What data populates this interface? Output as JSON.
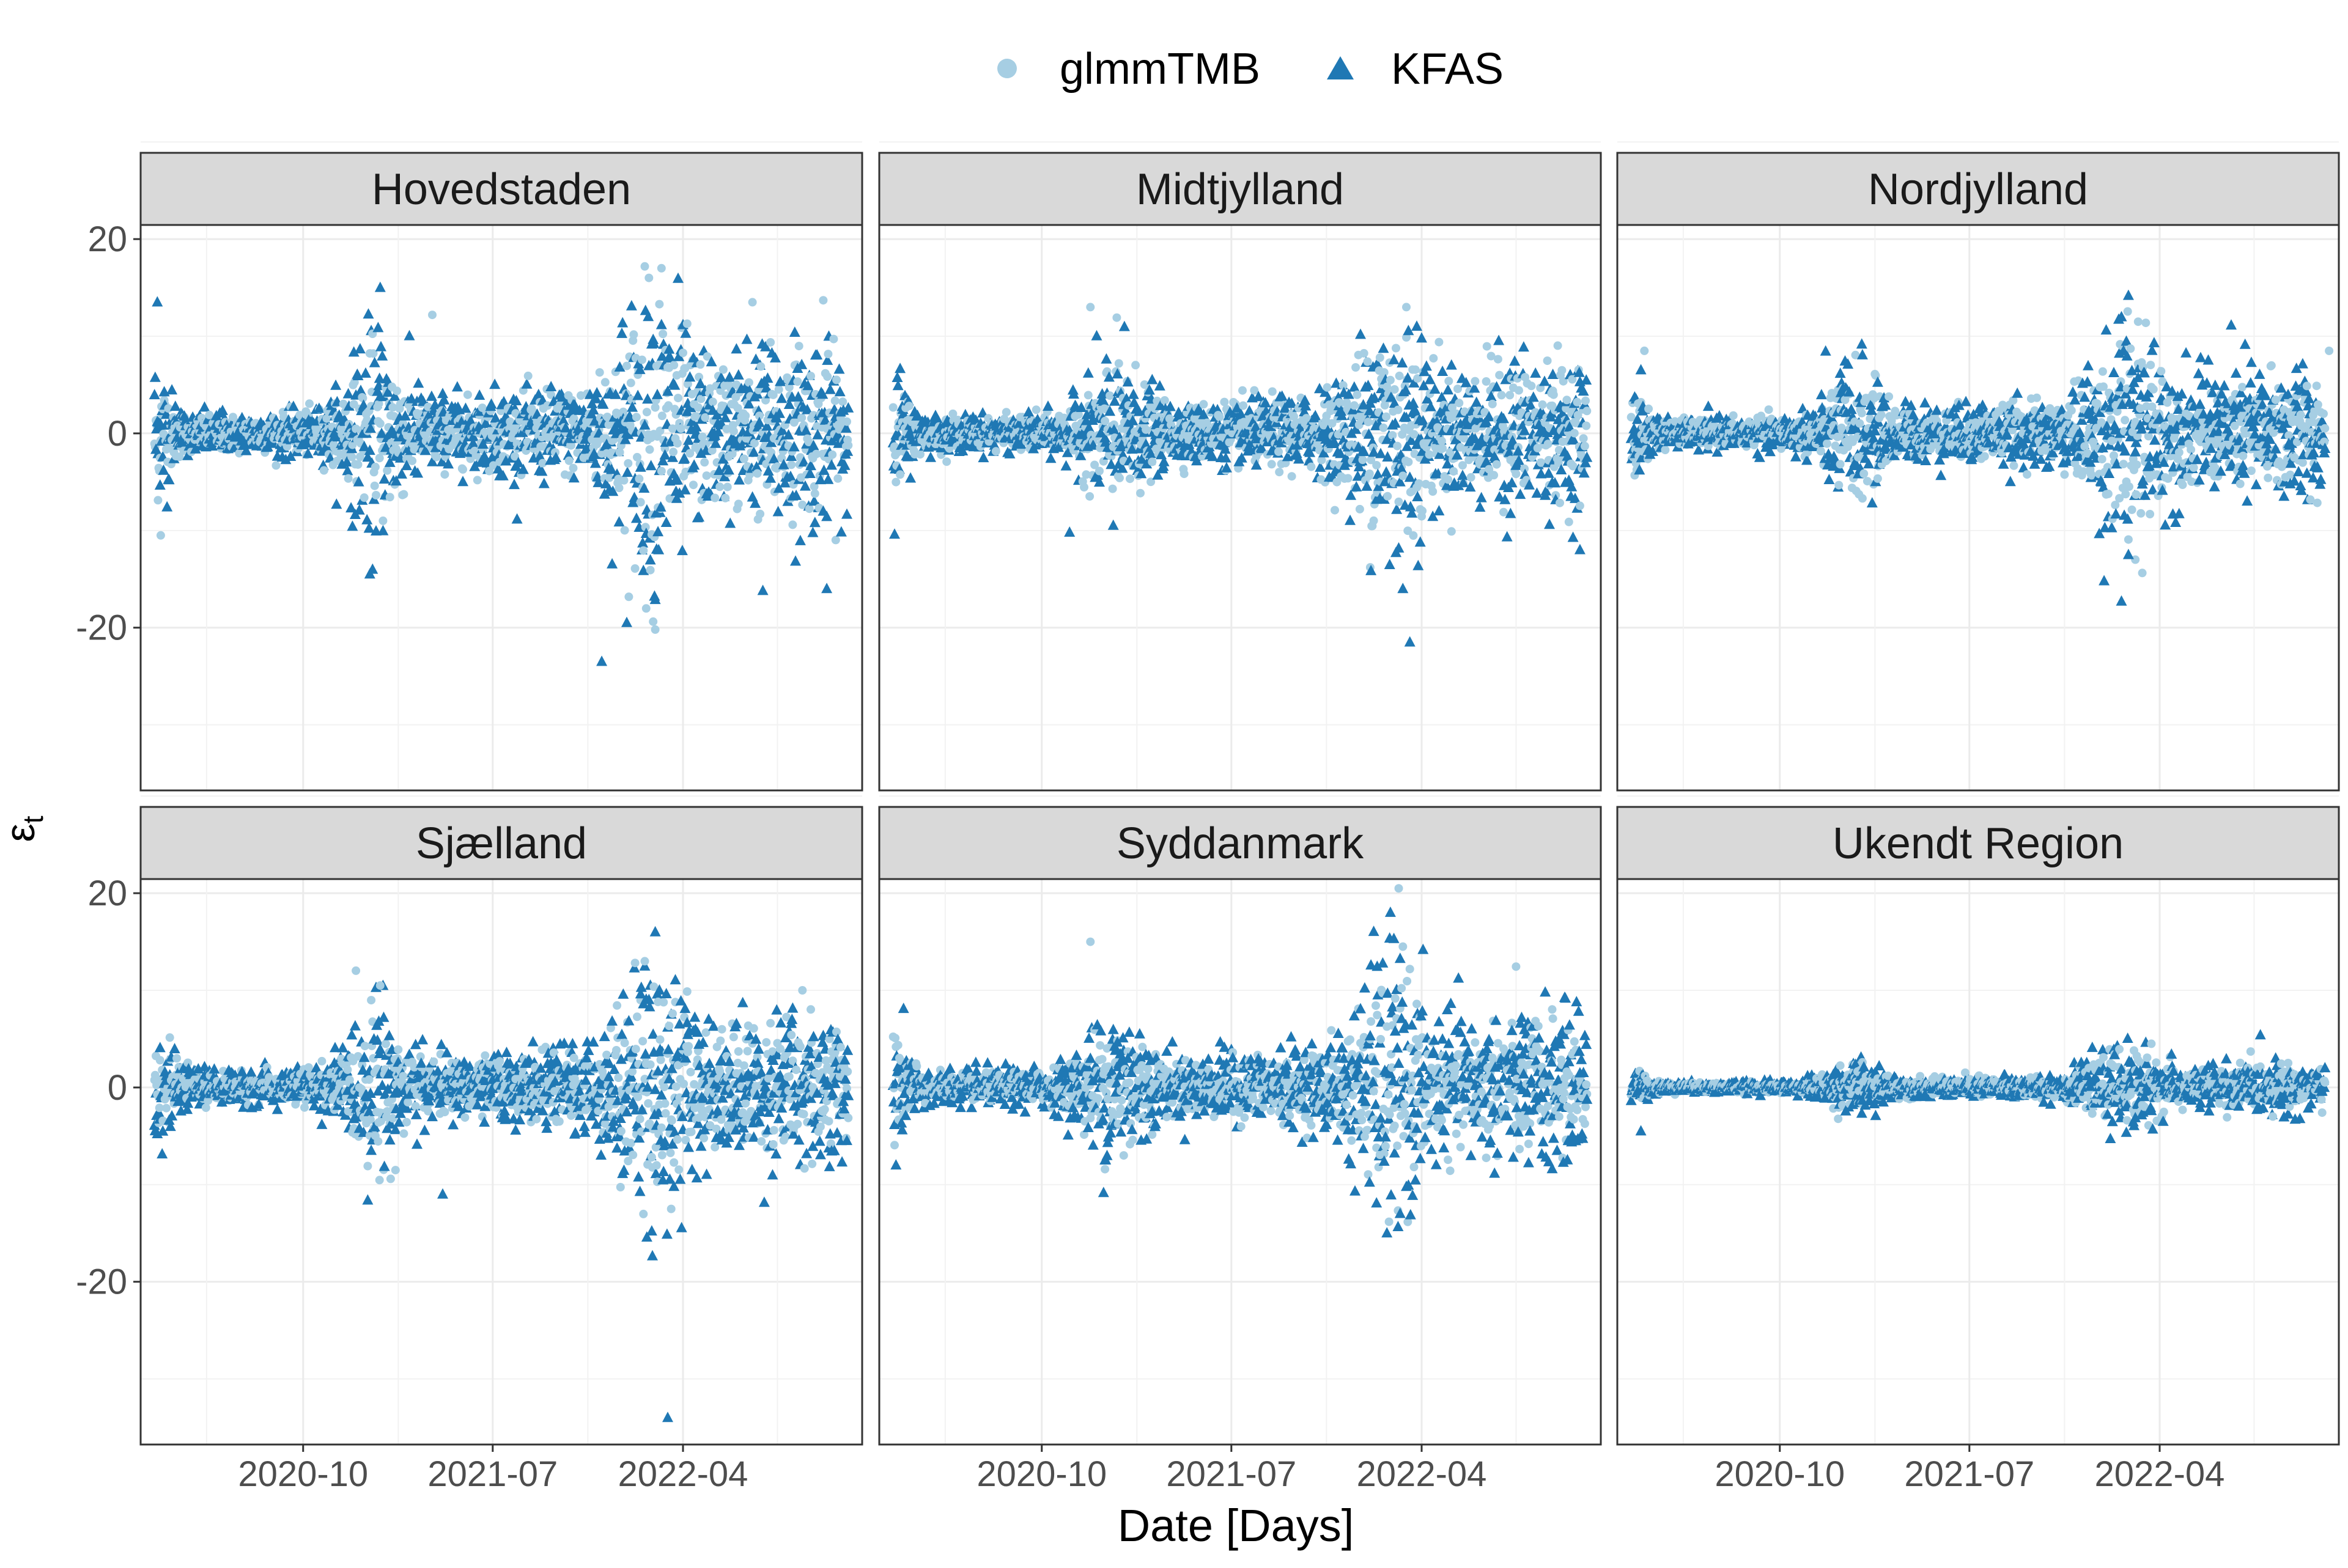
{
  "chart_data": {
    "type": "scatter",
    "title": "",
    "xlabel": "Date [Days]",
    "ylabel": "εt",
    "ylabel_main": "ε",
    "ylabel_sub": "t",
    "xlim": [
      "2020-02-10",
      "2022-12-15"
    ],
    "ylim": [
      -36,
      20
    ],
    "x_ticks": [
      "2020-10",
      "2021-07",
      "2022-04"
    ],
    "x_tick_dates": [
      "2020-10-01",
      "2021-07-01",
      "2022-04-01"
    ],
    "y_ticks": [
      20,
      0,
      -20
    ],
    "grid": true,
    "legend": {
      "position": "top",
      "entries": [
        {
          "name": "glmmTMB",
          "shape": "circle",
          "color": "#a6cee3"
        },
        {
          "name": "KFAS",
          "shape": "triangle",
          "color": "#1f78b4"
        }
      ]
    },
    "colors": {
      "glmmTMB": "#a6cee3",
      "KFAS": "#1f78b4",
      "strip": "#d9d9d9"
    },
    "panels": [
      {
        "name": "Hovedstaden",
        "glmmTMB": {
          "spread": 3.0
        },
        "KFAS": {
          "spread": 3.6
        },
        "highlights": [
          {
            "date": "2020-03-05",
            "series": "KFAS",
            "y": 13.5
          },
          {
            "date": "2021-01-20",
            "series": "KFAS",
            "y": 15.0
          },
          {
            "date": "2021-04-05",
            "series": "glmmTMB",
            "y": 12.2
          },
          {
            "date": "2022-03-01",
            "series": "glmmTMB",
            "y": 17.0
          },
          {
            "date": "2022-02-10",
            "series": "KFAS",
            "y": 12.0
          },
          {
            "date": "2022-10-20",
            "series": "glmmTMB",
            "y": 13.7
          },
          {
            "date": "2022-07-10",
            "series": "glmmTMB",
            "y": 13.5
          },
          {
            "date": "2021-12-05",
            "series": "KFAS",
            "y": -23.5
          },
          {
            "date": "2022-02-20",
            "series": "glmmTMB",
            "y": -20.2
          },
          {
            "date": "2022-01-10",
            "series": "KFAS",
            "y": -19.5
          },
          {
            "date": "2022-07-25",
            "series": "KFAS",
            "y": -16.2
          },
          {
            "date": "2022-10-25",
            "series": "KFAS",
            "y": -16.0
          },
          {
            "date": "2020-03-10",
            "series": "glmmTMB",
            "y": -10.5
          },
          {
            "date": "2021-01-05",
            "series": "KFAS",
            "y": -14.5
          }
        ]
      },
      {
        "name": "Midtjylland",
        "glmmTMB": {
          "spread": 2.6
        },
        "KFAS": {
          "spread": 2.9
        },
        "highlights": [
          {
            "date": "2020-12-10",
            "series": "glmmTMB",
            "y": 13.0
          },
          {
            "date": "2022-03-10",
            "series": "glmmTMB",
            "y": 13.0
          },
          {
            "date": "2022-03-25",
            "series": "KFAS",
            "y": 11.0
          },
          {
            "date": "2022-03-15",
            "series": "KFAS",
            "y": -21.5
          },
          {
            "date": "2022-03-05",
            "series": "KFAS",
            "y": -16.0
          },
          {
            "date": "2020-11-10",
            "series": "KFAS",
            "y": -10.2
          },
          {
            "date": "2022-11-15",
            "series": "KFAS",
            "y": -12.0
          }
        ]
      },
      {
        "name": "Nordjylland",
        "glmmTMB": {
          "spread": 2.2
        },
        "KFAS": {
          "spread": 2.6
        },
        "highlights": [
          {
            "date": "2020-03-20",
            "series": "glmmTMB",
            "y": 8.5
          },
          {
            "date": "2022-03-01",
            "series": "glmmTMB",
            "y": 11.5
          },
          {
            "date": "2022-12-01",
            "series": "glmmTMB",
            "y": 8.5
          },
          {
            "date": "2022-02-05",
            "series": "KFAS",
            "y": -17.3
          },
          {
            "date": "2022-02-25",
            "series": "glmmTMB",
            "y": -13.0
          },
          {
            "date": "2022-02-15",
            "series": "KFAS",
            "y": -12.5
          }
        ]
      },
      {
        "name": "Sjælland",
        "glmmTMB": {
          "spread": 2.5
        },
        "KFAS": {
          "spread": 3.0
        },
        "highlights": [
          {
            "date": "2021-01-20",
            "series": "glmmTMB",
            "y": 10.5
          },
          {
            "date": "2022-02-20",
            "series": "KFAS",
            "y": 16.0
          },
          {
            "date": "2022-02-05",
            "series": "glmmTMB",
            "y": 13.0
          },
          {
            "date": "2022-09-20",
            "series": "glmmTMB",
            "y": 10.0
          },
          {
            "date": "2022-03-10",
            "series": "KFAS",
            "y": -34.0
          },
          {
            "date": "2022-02-15",
            "series": "KFAS",
            "y": -14.8
          },
          {
            "date": "2022-03-15",
            "series": "glmmTMB",
            "y": -12.5
          },
          {
            "date": "2021-04-20",
            "series": "KFAS",
            "y": -11.0
          }
        ]
      },
      {
        "name": "Syddanmark",
        "glmmTMB": {
          "spread": 2.5
        },
        "KFAS": {
          "spread": 3.0
        },
        "highlights": [
          {
            "date": "2020-12-10",
            "series": "glmmTMB",
            "y": 15.0
          },
          {
            "date": "2022-02-15",
            "series": "KFAS",
            "y": 18.0
          },
          {
            "date": "2022-03-05",
            "series": "glmmTMB",
            "y": 14.5
          },
          {
            "date": "2022-02-10",
            "series": "KFAS",
            "y": -15.0
          },
          {
            "date": "2022-03-01",
            "series": "KFAS",
            "y": -13.0
          },
          {
            "date": "2020-03-05",
            "series": "KFAS",
            "y": -8.0
          },
          {
            "date": "2022-11-10",
            "series": "KFAS",
            "y": 8.8
          }
        ]
      },
      {
        "name": "Ukendt Region",
        "glmmTMB": {
          "spread": 0.8
        },
        "KFAS": {
          "spread": 0.9
        },
        "highlights": [
          {
            "date": "2020-03-15",
            "series": "KFAS",
            "y": -4.5
          },
          {
            "date": "2022-03-20",
            "series": "glmmTMB",
            "y": 4.5
          },
          {
            "date": "2022-08-10",
            "series": "glmmTMB",
            "y": 3.7
          }
        ]
      }
    ]
  }
}
